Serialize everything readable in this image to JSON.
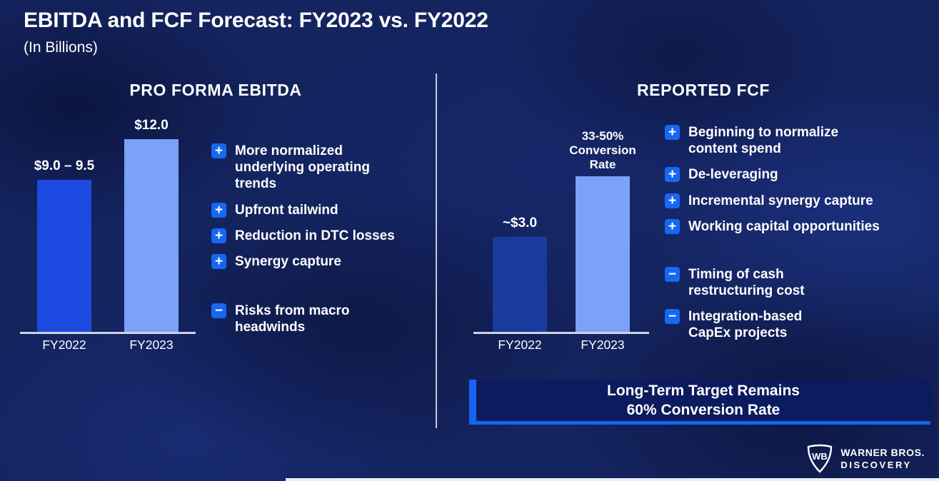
{
  "title": "EBITDA and FCF Forecast: FY2023 vs. FY2022",
  "subtitle": "(In Billions)",
  "icons": {
    "plus": "+",
    "minus": "−"
  },
  "left_panel": {
    "header": "PRO FORMA EBITDA",
    "positives": [
      "More normalized underlying operating trends",
      "Upfront tailwind",
      "Reduction in DTC losses",
      "Synergy capture"
    ],
    "negatives": [
      "Risks from macro headwinds"
    ]
  },
  "right_panel": {
    "header": "REPORTED FCF",
    "positives": [
      "Beginning to normalize content spend",
      "De-leveraging",
      "Incremental synergy capture",
      "Working capital opportunities"
    ],
    "negatives": [
      "Timing of cash restructuring cost",
      "Integration-based CapEx projects"
    ],
    "banner": {
      "line1": "Long-Term Target Remains",
      "line2": "60% Conversion Rate"
    }
  },
  "chart_data": [
    {
      "type": "bar",
      "title": "PRO FORMA EBITDA",
      "unit": "USD billions",
      "categories": [
        "FY2022",
        "FY2023"
      ],
      "values": [
        9.25,
        12.0
      ],
      "value_labels": [
        "$9.0 – 9.5",
        "$12.0"
      ],
      "ylim": [
        0,
        13
      ],
      "bar_colors": [
        "#1c49e0",
        "#7ba1f8"
      ],
      "grid": false,
      "legend": false
    },
    {
      "type": "bar",
      "title": "REPORTED FCF",
      "unit": "USD billions",
      "categories": [
        "FY2022",
        "FY2023"
      ],
      "values": [
        3.0,
        4.9
      ],
      "value_labels": [
        "~$3.0",
        "33-50% Conversion Rate"
      ],
      "ylim": [
        0,
        6.75
      ],
      "bar_colors": [
        "#1a3a9e",
        "#7ba1f8"
      ],
      "grid": false,
      "legend": false
    }
  ],
  "footer": {
    "monogram": "WB",
    "brand_line1": "WARNER BROS.",
    "brand_line2": "DISCOVERY"
  },
  "colors": {
    "accent_blue": "#1465f0",
    "icon_blue": "#1767f2",
    "light_bar": "#7ba1f8",
    "left_fy2022_bar": "#1c49e0",
    "right_fy2022_bar": "#1a3a9e",
    "baseline": "#ccd3e4",
    "banner_bg": "#0c1a5e",
    "background": "#14245f",
    "text": "#ffffff"
  }
}
